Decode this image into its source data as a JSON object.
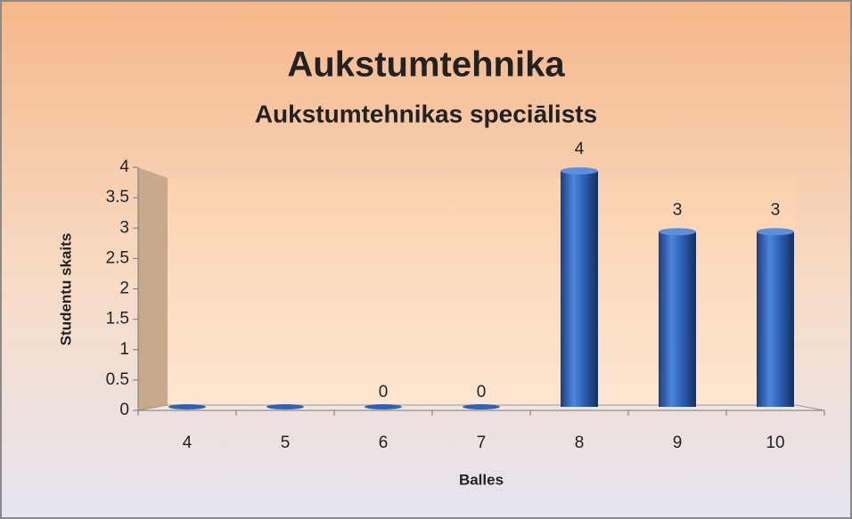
{
  "chart_data": {
    "type": "bar3d",
    "title": "Aukstumtehnika",
    "subtitle": "Aukstumtehnikas speciālists",
    "x_label": "Balles",
    "y_label": "Studentu skaits",
    "categories": [
      "4",
      "5",
      "6",
      "7",
      "8",
      "9",
      "10"
    ],
    "values": [
      0,
      0,
      0,
      0,
      4,
      3,
      3
    ],
    "value_labels": [
      null,
      null,
      "0",
      "0",
      "4",
      "3",
      "3"
    ],
    "color": "#2e62b8",
    "ylim": [
      0,
      4
    ],
    "yticks": [
      0,
      0.5,
      1,
      1.5,
      2,
      2.5,
      3,
      3.5,
      4
    ]
  }
}
